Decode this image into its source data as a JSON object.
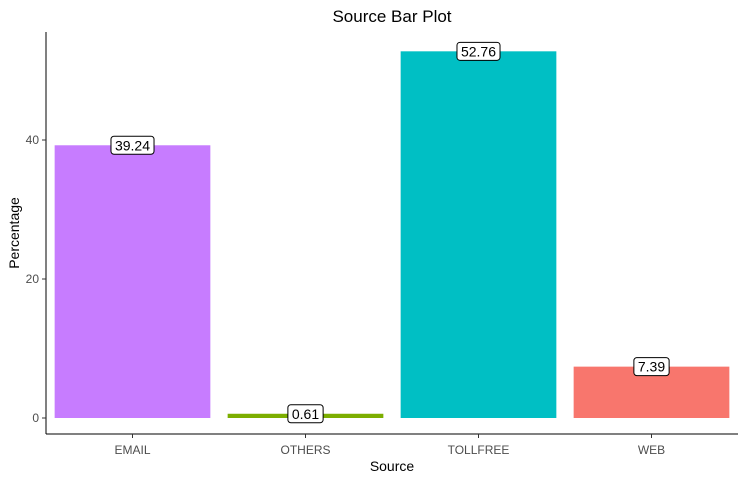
{
  "chart_data": {
    "type": "bar",
    "title": "Source Bar Plot",
    "xlabel": "Source",
    "ylabel": "Percentage",
    "categories": [
      "EMAIL",
      "OTHERS",
      "TOLLFREE",
      "WEB"
    ],
    "values": [
      39.24,
      0.61,
      52.76,
      7.39
    ],
    "data_labels": [
      "39.24",
      "0.61",
      "52.76",
      "7.39"
    ],
    "colors": [
      "#C77CFF",
      "#7CAE00",
      "#00BFC4",
      "#F8766D"
    ],
    "yticks": [
      0,
      20,
      40
    ],
    "ylim": [
      0,
      55.4
    ],
    "grid": false,
    "legend": "none"
  }
}
